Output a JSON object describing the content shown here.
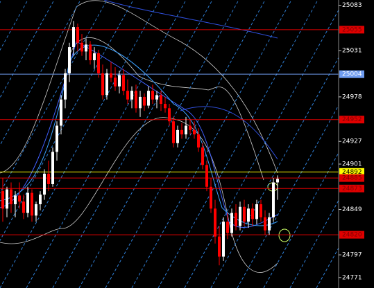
{
  "chart_data": {
    "type": "candlestick",
    "open": [
      24870,
      24850,
      24872,
      24855,
      24865,
      24858,
      24845,
      24868,
      24842,
      24855,
      24866,
      24890,
      24878,
      24915,
      24945,
      24975,
      25005,
      25035,
      25058,
      25040,
      25030,
      25038,
      25020,
      25028,
      25005,
      24980,
      25005,
      25000,
      24990,
      25003,
      24985,
      24975,
      24985,
      24965,
      24978,
      24968,
      24985,
      24975,
      24980,
      24970,
      24965,
      24950,
      24925,
      24940,
      24935,
      24945,
      24940,
      24935,
      24920,
      24900,
      24875,
      24850,
      24818,
      24795,
      24835,
      24822,
      24845,
      24830,
      24852,
      24835,
      24850,
      24838,
      24855,
      24840,
      24825,
      24840,
      24880
    ],
    "high": [
      24885,
      24875,
      24880,
      24870,
      24880,
      24866,
      24875,
      24872,
      24858,
      24870,
      24895,
      24905,
      24920,
      24950,
      24980,
      25010,
      25040,
      25065,
      25062,
      25050,
      25045,
      25042,
      25035,
      25032,
      25015,
      25010,
      25018,
      25012,
      25008,
      25010,
      24998,
      24990,
      24992,
      24985,
      24982,
      24990,
      24992,
      24985,
      24985,
      24978,
      24970,
      24955,
      24945,
      24948,
      24955,
      24952,
      24950,
      24942,
      24925,
      24905,
      24885,
      24860,
      24830,
      24840,
      24845,
      24850,
      24855,
      24858,
      24860,
      24855,
      24856,
      24860,
      24860,
      24848,
      24845,
      24885,
      24888
    ],
    "low": [
      24835,
      24840,
      24845,
      24840,
      24850,
      24838,
      24840,
      24835,
      24835,
      24848,
      24860,
      24870,
      24875,
      24905,
      24935,
      24965,
      24995,
      25025,
      25030,
      25025,
      25020,
      25015,
      25010,
      25000,
      24975,
      24975,
      24995,
      24985,
      24982,
      24980,
      24970,
      24965,
      24960,
      24955,
      24962,
      24965,
      24970,
      24965,
      24962,
      24960,
      24945,
      24920,
      24920,
      24930,
      24930,
      24935,
      24930,
      24915,
      24895,
      24870,
      24845,
      24810,
      24785,
      24790,
      24815,
      24818,
      24825,
      24825,
      24830,
      24828,
      24830,
      24832,
      24835,
      24820,
      24820,
      24835,
      24860
    ],
    "close": [
      24850,
      24872,
      24855,
      24865,
      24858,
      24845,
      24868,
      24842,
      24855,
      24866,
      24890,
      24878,
      24915,
      24945,
      24975,
      25005,
      25035,
      25058,
      25040,
      25030,
      25038,
      25020,
      25028,
      25005,
      24980,
      25005,
      25000,
      24990,
      25003,
      24985,
      24975,
      24985,
      24965,
      24978,
      24968,
      24985,
      24975,
      24980,
      24970,
      24965,
      24950,
      24925,
      24940,
      24935,
      24945,
      24940,
      24935,
      24920,
      24900,
      24875,
      24850,
      24818,
      24795,
      24835,
      24822,
      24845,
      24830,
      24852,
      24835,
      24850,
      24838,
      24855,
      24840,
      24825,
      24840,
      24880,
      24884
    ],
    "up_color": "#ffffff",
    "down_color": "#ff0000",
    "ylim": [
      24759,
      25089
    ],
    "yticks": [
      25083,
      25031,
      24978,
      24927,
      24901,
      24849,
      24797,
      24771
    ],
    "levels": [
      {
        "value": 25055,
        "color": "#e00000",
        "text_color": "#800000"
      },
      {
        "value": 25004,
        "color": "#6f9cf0",
        "text_color": "#ffffff"
      },
      {
        "value": 24952,
        "color": "#e00000",
        "text_color": "#800000"
      },
      {
        "value": 24892,
        "color": "#ffff00",
        "text_color": "#000000"
      },
      {
        "value": 24885,
        "color": "#e00000",
        "text_color": "#800000"
      },
      {
        "value": 24873,
        "color": "#e00000",
        "text_color": "#800000"
      },
      {
        "value": 24820,
        "color": "#e00000",
        "text_color": "#800000"
      }
    ]
  }
}
